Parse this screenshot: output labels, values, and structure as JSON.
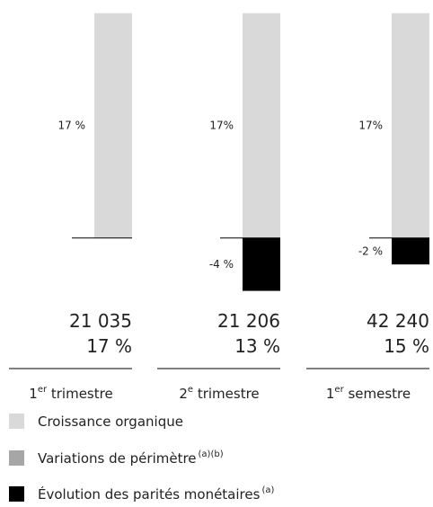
{
  "chart_data": {
    "type": "bar",
    "stacked": true,
    "categories": [
      [
        "1",
        "er",
        "trimestre"
      ],
      [
        "2",
        "e",
        "trimestre"
      ],
      [
        "1",
        "er",
        "semestre"
      ]
    ],
    "series": [
      {
        "name": "Croissance organique",
        "color": "#d9d9d9",
        "values": [
          17,
          17,
          17
        ],
        "value_labels": [
          "17 %",
          "17%",
          "17%"
        ]
      },
      {
        "name": "Variations de périmètre",
        "name_note": "(a)(b)",
        "color": "#a6a6a6",
        "values": [
          0,
          0,
          0
        ]
      },
      {
        "name": "Évolution des parités monétaires",
        "name_note": "(a)",
        "color": "#000000",
        "values": [
          0,
          -4,
          -2
        ],
        "value_labels": [
          null,
          "-4 %",
          "-2 %"
        ]
      }
    ],
    "totals": [
      {
        "amount": "21 035",
        "growth": "17 %"
      },
      {
        "amount": "21 206",
        "growth": "13 %"
      },
      {
        "amount": "42 240",
        "growth": "15 %"
      }
    ],
    "ylim": [
      -6,
      18
    ]
  }
}
